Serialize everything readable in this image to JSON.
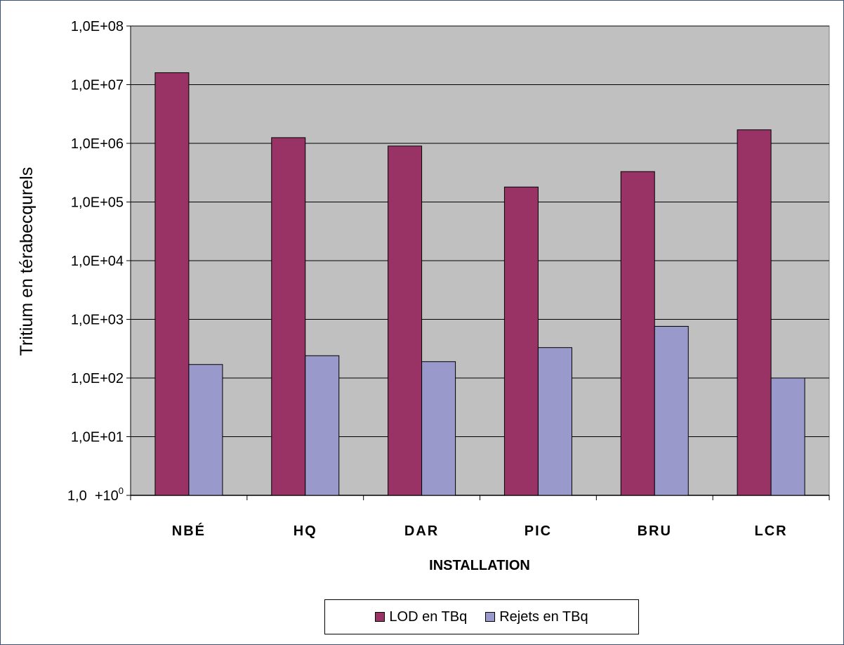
{
  "chart_data": {
    "type": "bar",
    "y_scale": "log",
    "ylim": [
      1,
      100000000
    ],
    "ylabel": "Tritium en térabecqurels",
    "xlabel": "INSTALLATION",
    "categories": [
      "NBÉ",
      "HQ",
      "DAR",
      "PIC",
      "BRU",
      "LCR"
    ],
    "y_ticks": [
      {
        "value": 1,
        "base": "1,0  +10",
        "sup": "0"
      },
      {
        "value": 10,
        "label": "1,0E+01"
      },
      {
        "value": 100,
        "label": "1,0E+02"
      },
      {
        "value": 1000,
        "label": "1,0E+03"
      },
      {
        "value": 10000,
        "label": "1,0E+04"
      },
      {
        "value": 100000,
        "label": "1,0E+05"
      },
      {
        "value": 1000000,
        "label": "1,0E+06"
      },
      {
        "value": 10000000,
        "label": "1,0E+07"
      },
      {
        "value": 100000000,
        "label": "1,0E+08"
      }
    ],
    "series": [
      {
        "name": "LOD en TBq",
        "color": "#993366",
        "values": [
          16000000,
          1250000,
          900000,
          180000,
          330000,
          1700000
        ]
      },
      {
        "name": "Rejets en TBq",
        "color": "#9999cc",
        "values": [
          170,
          240,
          190,
          330,
          760,
          100
        ]
      }
    ],
    "plot_background": "#c0c0c0",
    "grid": true,
    "legend_position": "bottom"
  }
}
